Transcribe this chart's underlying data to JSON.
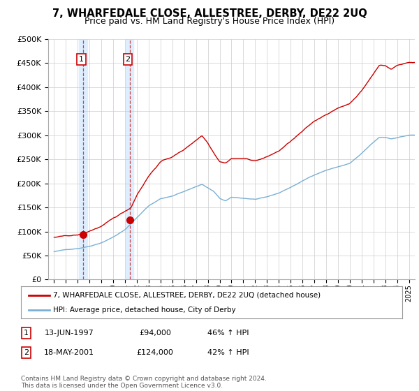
{
  "title": "7, WHARFEDALE CLOSE, ALLESTREE, DERBY, DE22 2UQ",
  "subtitle": "Price paid vs. HM Land Registry's House Price Index (HPI)",
  "background_color": "#ffffff",
  "plot_bg_color": "#ffffff",
  "grid_color": "#cccccc",
  "sale1_date": 1997.45,
  "sale1_price": 94000,
  "sale1_label": "1",
  "sale2_date": 2001.38,
  "sale2_price": 124000,
  "sale2_label": "2",
  "hpi_color": "#7ab0d4",
  "price_color": "#cc0000",
  "shade_color": "#ddeeff",
  "legend_line1": "7, WHARFEDALE CLOSE, ALLESTREE, DERBY, DE22 2UQ (detached house)",
  "legend_line2": "HPI: Average price, detached house, City of Derby",
  "table_row1": [
    "1",
    "13-JUN-1997",
    "£94,000",
    "46% ↑ HPI"
  ],
  "table_row2": [
    "2",
    "18-MAY-2001",
    "£124,000",
    "42% ↑ HPI"
  ],
  "footer": "Contains HM Land Registry data © Crown copyright and database right 2024.\nThis data is licensed under the Open Government Licence v3.0.",
  "ylim": [
    0,
    500000
  ],
  "xlim": [
    1994.5,
    2025.5
  ],
  "hpi_keypoints": [
    [
      1995.0,
      58000
    ],
    [
      1996.0,
      62000
    ],
    [
      1997.0,
      65000
    ],
    [
      1998.0,
      70000
    ],
    [
      1999.0,
      78000
    ],
    [
      2000.0,
      90000
    ],
    [
      2001.0,
      105000
    ],
    [
      2002.0,
      130000
    ],
    [
      2003.0,
      155000
    ],
    [
      2004.0,
      170000
    ],
    [
      2005.0,
      175000
    ],
    [
      2006.0,
      185000
    ],
    [
      2007.5,
      200000
    ],
    [
      2008.5,
      185000
    ],
    [
      2009.0,
      170000
    ],
    [
      2009.5,
      165000
    ],
    [
      2010.0,
      172000
    ],
    [
      2011.0,
      170000
    ],
    [
      2012.0,
      168000
    ],
    [
      2013.0,
      172000
    ],
    [
      2014.0,
      180000
    ],
    [
      2015.0,
      192000
    ],
    [
      2016.0,
      205000
    ],
    [
      2017.0,
      218000
    ],
    [
      2018.0,
      228000
    ],
    [
      2019.0,
      235000
    ],
    [
      2020.0,
      242000
    ],
    [
      2021.0,
      262000
    ],
    [
      2022.0,
      285000
    ],
    [
      2022.5,
      295000
    ],
    [
      2023.0,
      295000
    ],
    [
      2023.5,
      292000
    ],
    [
      2024.0,
      295000
    ],
    [
      2025.0,
      300000
    ]
  ],
  "price_keypoints": [
    [
      1995.0,
      88000
    ],
    [
      1996.0,
      90000
    ],
    [
      1997.0,
      92000
    ],
    [
      1997.5,
      94000
    ],
    [
      1998.0,
      100000
    ],
    [
      1999.0,
      110000
    ],
    [
      2000.0,
      125000
    ],
    [
      2001.0,
      140000
    ],
    [
      2001.5,
      148000
    ],
    [
      2002.0,
      175000
    ],
    [
      2003.0,
      215000
    ],
    [
      2004.0,
      245000
    ],
    [
      2005.0,
      255000
    ],
    [
      2006.0,
      270000
    ],
    [
      2007.0,
      290000
    ],
    [
      2007.5,
      300000
    ],
    [
      2008.0,
      285000
    ],
    [
      2008.5,
      265000
    ],
    [
      2009.0,
      248000
    ],
    [
      2009.5,
      245000
    ],
    [
      2010.0,
      255000
    ],
    [
      2011.0,
      255000
    ],
    [
      2012.0,
      250000
    ],
    [
      2013.0,
      258000
    ],
    [
      2014.0,
      270000
    ],
    [
      2015.0,
      290000
    ],
    [
      2016.0,
      310000
    ],
    [
      2017.0,
      330000
    ],
    [
      2018.0,
      345000
    ],
    [
      2019.0,
      358000
    ],
    [
      2020.0,
      368000
    ],
    [
      2021.0,
      395000
    ],
    [
      2022.0,
      430000
    ],
    [
      2022.5,
      448000
    ],
    [
      2023.0,
      448000
    ],
    [
      2023.5,
      440000
    ],
    [
      2024.0,
      448000
    ],
    [
      2025.0,
      455000
    ]
  ]
}
